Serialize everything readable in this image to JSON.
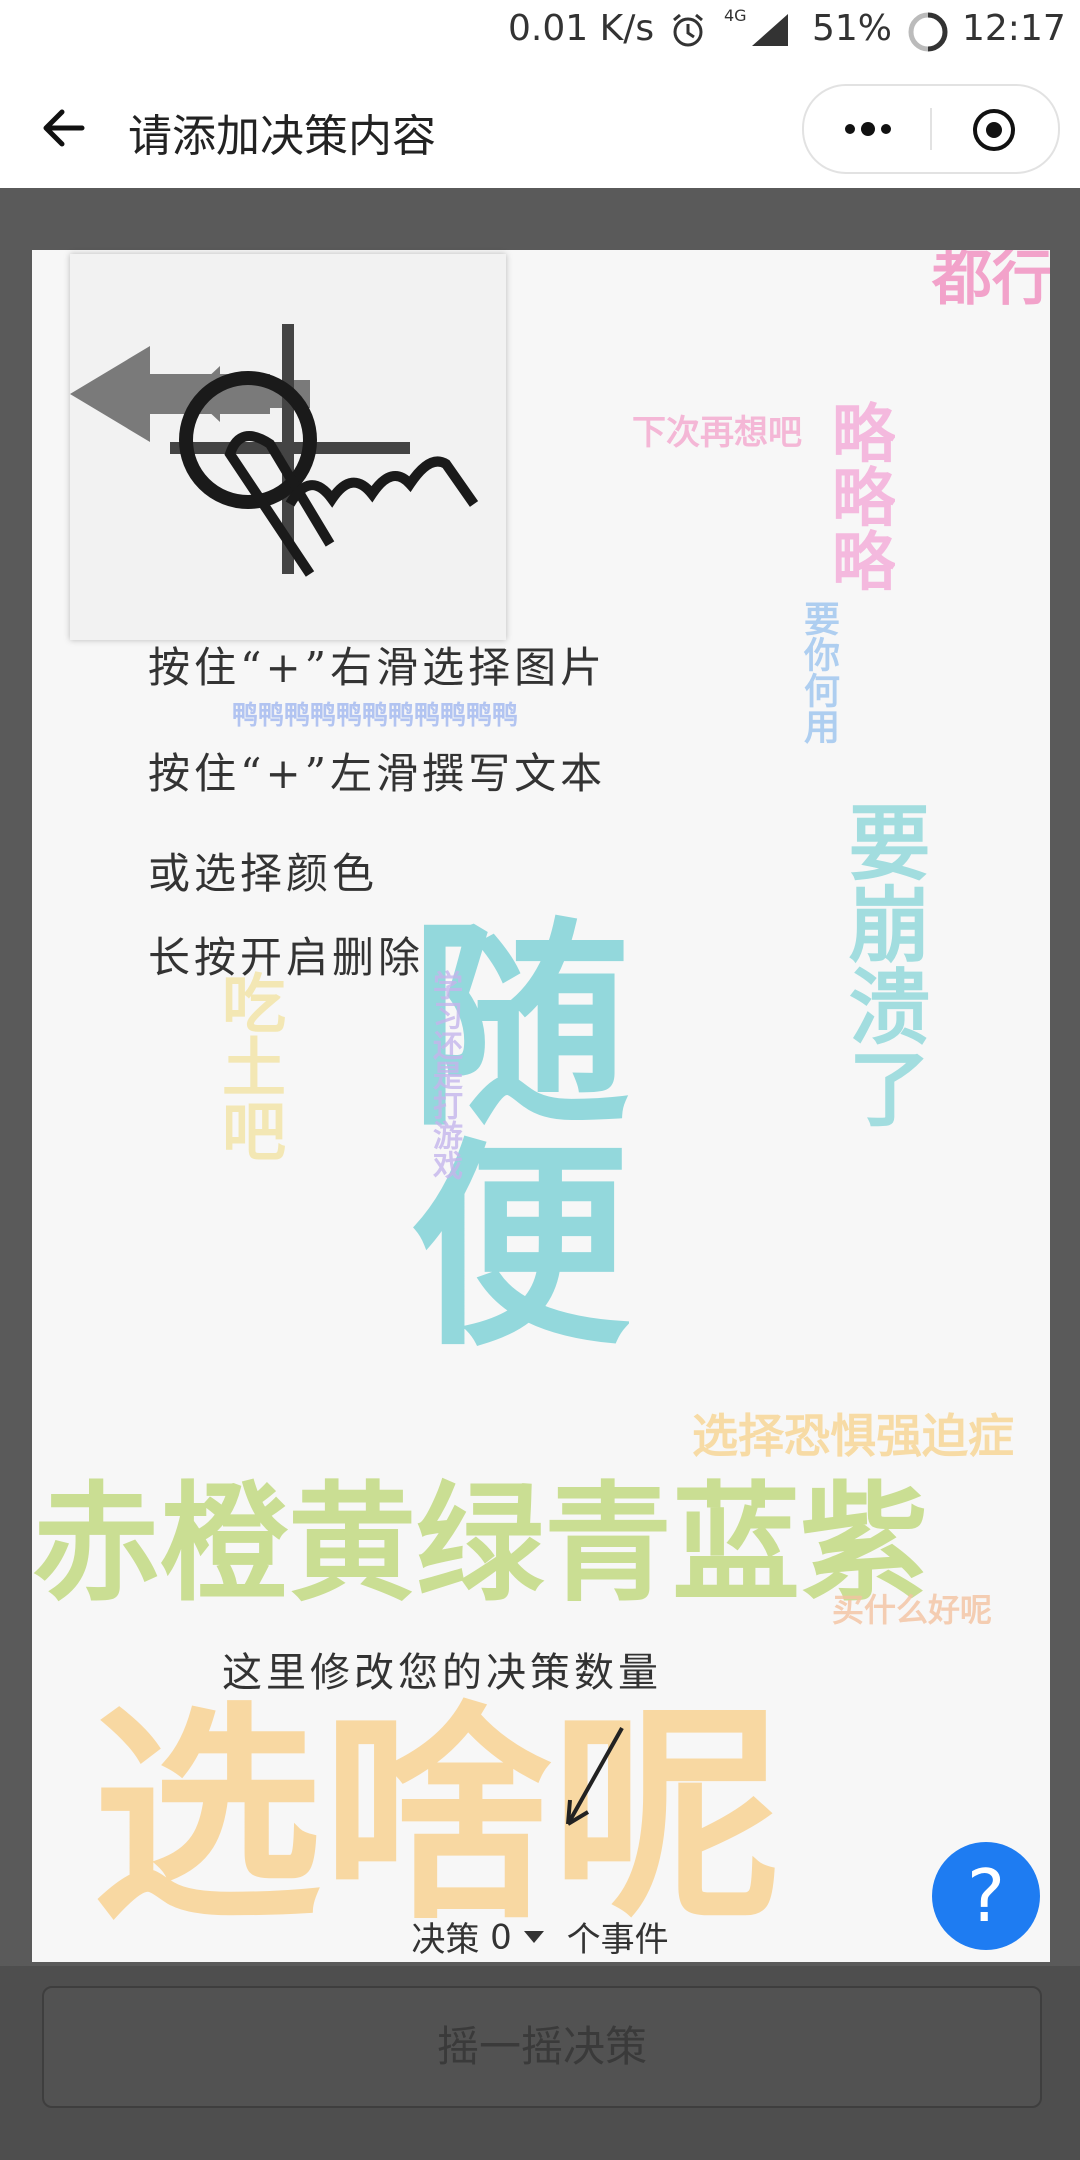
{
  "status_bar": {
    "speed": "0.01 K/s",
    "network": "4G",
    "battery": "51%",
    "time": "12:17"
  },
  "nav": {
    "title": "请添加决策内容",
    "back_icon": "arrow-left-icon",
    "menu_icon": "more-dots-icon",
    "target_icon": "record-target-icon"
  },
  "tutorial": {
    "line1": "按住“+”右滑选择图片",
    "line2": "按住“+”左滑撰写文本",
    "line3": "或选择颜色",
    "line4": "长按开启删除",
    "change_hint": "这里修改您的决策数量"
  },
  "decision": {
    "prefix": "决策",
    "count": "0",
    "suffix": "个事件"
  },
  "help_button": "?",
  "shake_button": "摇一摇决策",
  "word_cloud": [
    {
      "text": "随便",
      "color": "#5fc9cf"
    },
    {
      "text": "何用",
      "color": "#f07fb8"
    },
    {
      "text": "赤橙黄绿青蓝紫",
      "color": "#b8d46a"
    },
    {
      "text": "选啥呢",
      "color": "#f9c46b"
    },
    {
      "text": "略略略",
      "color": "#f4a5d6"
    },
    {
      "text": "选择恐惧强迫症",
      "color": "#f7d28a"
    },
    {
      "text": "下次再想吧",
      "color": "#f4a8cf"
    },
    {
      "text": "吃土吧",
      "color": "#f2e199"
    },
    {
      "text": "要崩溃了",
      "color": "#7fd3d6"
    },
    {
      "text": "鸭鸭鸭鸭鸭鸭鸭鸭鸭鸭鸭",
      "color": "#a2b8f0"
    },
    {
      "text": "买什么好呢",
      "color": "#f4c3a1"
    },
    {
      "text": "学习还是打游戏",
      "color": "#c5b5ec"
    },
    {
      "text": "都行",
      "color": "#f07fb8"
    },
    {
      "text": "要你何用",
      "color": "#9dc5ef"
    }
  ]
}
